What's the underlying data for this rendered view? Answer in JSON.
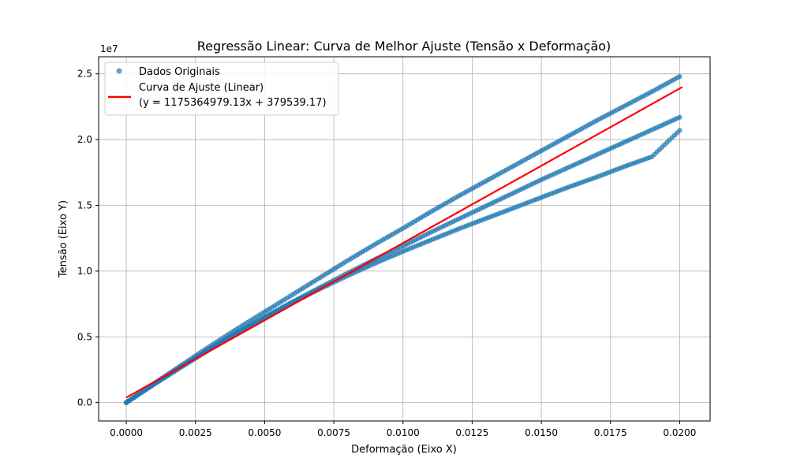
{
  "chart_data": {
    "type": "scatter",
    "title": "Regressão Linear: Curva de Melhor Ajuste (Tensão x Deformação)",
    "xlabel": "Deformação (Eixo X)",
    "ylabel": "Tensão (Eixo Y)",
    "y_offset_label": "1e7",
    "xlim": [
      -0.001,
      0.0211
    ],
    "ylim": [
      -1400000,
      26300000
    ],
    "x_ticks": [
      0.0,
      0.0025,
      0.005,
      0.0075,
      0.01,
      0.0125,
      0.015,
      0.0175,
      0.02
    ],
    "x_tick_labels": [
      "0.0000",
      "0.0025",
      "0.0050",
      "0.0075",
      "0.0100",
      "0.0125",
      "0.0150",
      "0.0175",
      "0.0200"
    ],
    "y_ticks": [
      0,
      5000000,
      10000000,
      15000000,
      20000000,
      25000000
    ],
    "y_tick_labels": [
      "0.0",
      "0.5",
      "1.0",
      "1.5",
      "2.0",
      "2.5"
    ],
    "grid": true,
    "legend_position": "top-left",
    "series": [
      {
        "name": "Dados Originais",
        "kind": "scatter",
        "color": "#1f77b4",
        "groups": [
          {
            "x": [
              0.0,
              0.001,
              0.002,
              0.003,
              0.004,
              0.005,
              0.006,
              0.007,
              0.008,
              0.009,
              0.01,
              0.011,
              0.012,
              0.013,
              0.014,
              0.015,
              0.016,
              0.017,
              0.018,
              0.019,
              0.02
            ],
            "y": [
              0,
              1450000,
              2850000,
              4250000,
              5600000,
              6900000,
              8200000,
              9500000,
              10800000,
              12050000,
              13250000,
              14500000,
              15700000,
              16850000,
              18000000,
              19150000,
              20300000,
              21450000,
              22550000,
              23650000,
              24800000
            ]
          },
          {
            "x": [
              0.0,
              0.001,
              0.002,
              0.003,
              0.004,
              0.005,
              0.006,
              0.007,
              0.008,
              0.009,
              0.01,
              0.011,
              0.012,
              0.013,
              0.014,
              0.015,
              0.016,
              0.017,
              0.018,
              0.019,
              0.02
            ],
            "y": [
              0,
              1400000,
              2750000,
              4050000,
              5300000,
              6500000,
              7650000,
              8750000,
              9850000,
              10900000,
              11900000,
              12950000,
              13950000,
              14950000,
              15950000,
              16950000,
              17900000,
              18850000,
              19800000,
              20750000,
              21700000
            ]
          },
          {
            "x": [
              0.0,
              0.001,
              0.002,
              0.003,
              0.004,
              0.005,
              0.006,
              0.007,
              0.008,
              0.009,
              0.01,
              0.011,
              0.012,
              0.013,
              0.014,
              0.015,
              0.016,
              0.017,
              0.018,
              0.019,
              0.02
            ],
            "y": [
              0,
              1380000,
              2720000,
              4020000,
              5250000,
              6450000,
              7600000,
              8650000,
              9650000,
              10600000,
              11500000,
              12350000,
              13200000,
              14000000,
              14800000,
              15600000,
              16400000,
              17150000,
              17950000,
              18700000,
              20700000
            ]
          }
        ]
      },
      {
        "name": "Curva de Ajuste (Linear)",
        "equation": "(y = 1175364979.13x + 379539.17)",
        "kind": "line",
        "color": "#ff0000",
        "x": [
          0.0,
          0.0201
        ],
        "y": [
          379539.17,
          24004375.25
        ]
      }
    ]
  }
}
